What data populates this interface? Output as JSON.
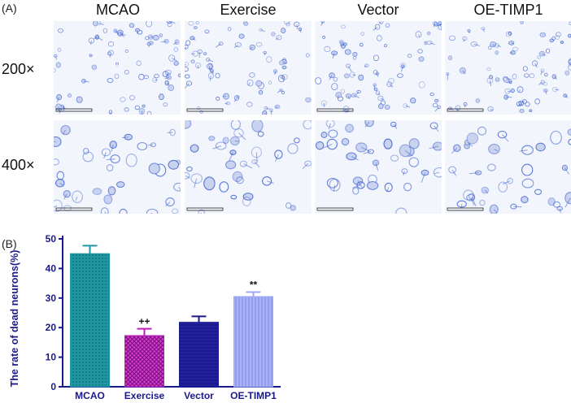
{
  "panel_a": {
    "label": "(A)",
    "columns": [
      "MCAO",
      "Exercise",
      "Vector",
      "OE-TIMP1"
    ],
    "rows": [
      "200×",
      "400×"
    ]
  },
  "panel_b": {
    "label": "(B)"
  },
  "colors": {
    "mcao": "#2196a3",
    "exercise": "#c01ec0",
    "vector": "#1a1a8c",
    "oe_timp1": "#9fa8f5",
    "axis": "#1a1a8c",
    "stain": "#3a5fcf"
  },
  "chart_data": {
    "type": "bar",
    "categories": [
      "MCAO",
      "Exercise",
      "Vector",
      "OE-TIMP1"
    ],
    "values": [
      45,
      17.3,
      21.8,
      30.5
    ],
    "errors": [
      2.7,
      2.3,
      2.0,
      1.5
    ],
    "annotations": [
      "",
      "++",
      "",
      "**"
    ],
    "ylabel": "The rate of dead neurons(%)",
    "ylim": [
      0,
      50
    ],
    "yticks": [
      "0",
      "10",
      "20",
      "30",
      "40",
      "50"
    ],
    "grid": false
  }
}
